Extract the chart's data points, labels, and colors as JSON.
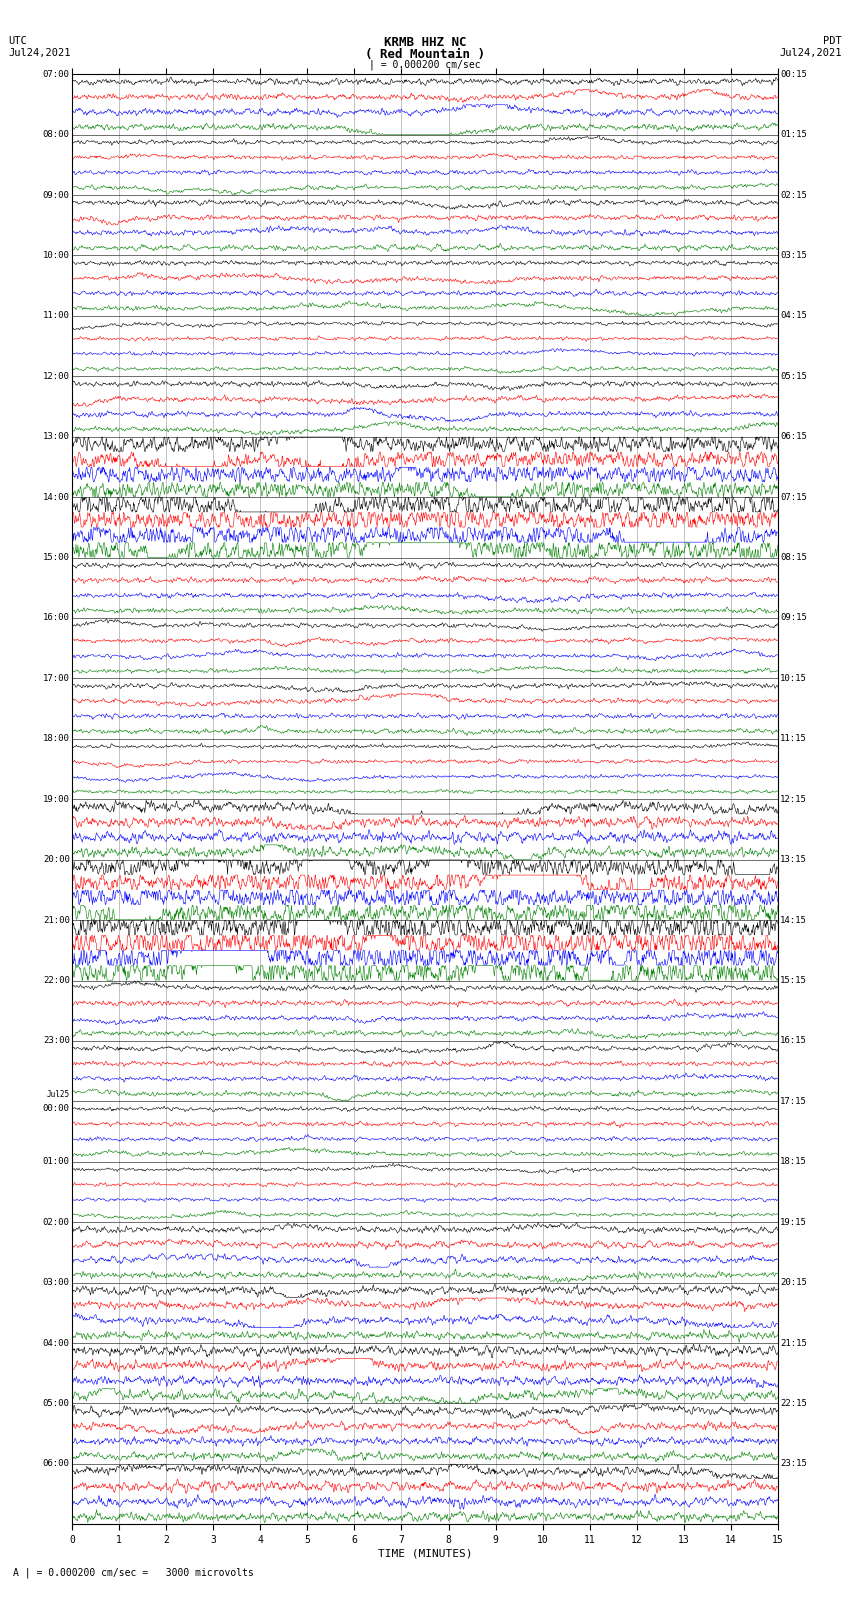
{
  "title_line1": "KRMB HHZ NC",
  "title_line2": "( Red Mountain )",
  "scale_text": "| = 0.000200 cm/sec",
  "bottom_scale_text": "A | = 0.000200 cm/sec =   3000 microvolts",
  "left_label_line1": "UTC",
  "left_label_line2": "Jul24,2021",
  "right_label_line1": "PDT",
  "right_label_line2": "Jul24,2021",
  "xlabel": "TIME (MINUTES)",
  "trace_colors_cycle": [
    "black",
    "red",
    "blue",
    "green"
  ],
  "background_color": "white",
  "num_traces_per_row": 4,
  "minutes_per_row": 15,
  "x_ticks": [
    0,
    1,
    2,
    3,
    4,
    5,
    6,
    7,
    8,
    9,
    10,
    11,
    12,
    13,
    14,
    15
  ],
  "figsize": [
    8.5,
    16.13
  ],
  "dpi": 100,
  "left_times_utc": [
    "07:00",
    "08:00",
    "09:00",
    "10:00",
    "11:00",
    "12:00",
    "13:00",
    "14:00",
    "15:00",
    "16:00",
    "17:00",
    "18:00",
    "19:00",
    "20:00",
    "21:00",
    "22:00",
    "23:00",
    "Jul25\n00:00",
    "01:00",
    "02:00",
    "03:00",
    "04:00",
    "05:00",
    "06:00"
  ],
  "right_times_pdt": [
    "00:15",
    "01:15",
    "02:15",
    "03:15",
    "04:15",
    "05:15",
    "06:15",
    "07:15",
    "08:15",
    "09:15",
    "10:15",
    "11:15",
    "12:15",
    "13:15",
    "14:15",
    "15:15",
    "16:15",
    "17:15",
    "18:15",
    "19:15",
    "20:15",
    "21:15",
    "22:15",
    "23:15"
  ],
  "num_rows": 24,
  "samples_per_minute": 100,
  "seed": 42,
  "amp_by_row": [
    1.2,
    0.8,
    1.0,
    0.9,
    0.7,
    1.0,
    3.5,
    4.5,
    1.0,
    0.8,
    0.9,
    0.7,
    2.0,
    4.0,
    5.5,
    1.0,
    0.9,
    0.8,
    0.7,
    1.2,
    1.5,
    1.8,
    1.5,
    1.8
  ],
  "vline_color": "#aaaaaa",
  "vline_lw": 0.5,
  "trace_lw": 0.4
}
